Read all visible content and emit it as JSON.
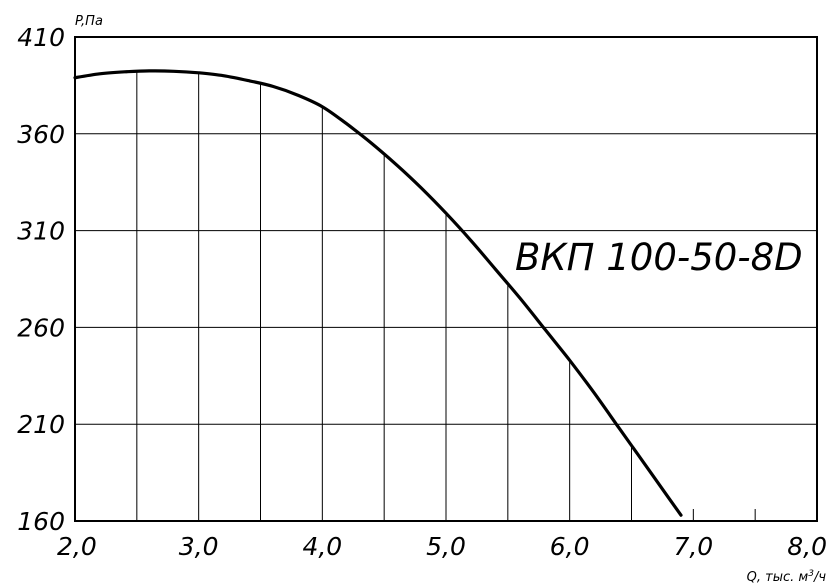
{
  "chart_data": {
    "type": "line",
    "title": "",
    "annotation": "ВКП 100-50-8D",
    "ylabel": "P,Па",
    "xlabel_main": "Q, тыс. м",
    "xlabel_sup": "3",
    "xlabel_end": "/ч",
    "xlim": [
      2.0,
      8.0
    ],
    "ylim": [
      160,
      410
    ],
    "grid": true,
    "xticks": [
      2.0,
      3.0,
      4.0,
      5.0,
      6.0,
      7.0,
      8.0
    ],
    "xtick_labels": [
      "2,0",
      "3,0",
      "4,0",
      "5,0",
      "6,0",
      "7,0",
      "8,0"
    ],
    "yticks": [
      160,
      210,
      260,
      310,
      360,
      410
    ],
    "ytick_labels": [
      "160",
      "210",
      "260",
      "310",
      "360",
      "410"
    ],
    "grid_x": [
      2.5,
      3.0,
      3.5,
      4.0,
      4.5,
      5.0,
      5.5,
      6.0,
      6.5
    ],
    "grid_y": [
      210,
      260,
      310,
      360
    ],
    "series": [
      {
        "x": [
          2.0,
          2.2,
          2.4,
          2.6,
          2.8,
          3.0,
          3.2,
          3.4,
          3.6,
          3.8,
          4.0,
          4.2,
          4.4,
          4.6,
          4.8,
          5.0,
          5.2,
          5.4,
          5.6,
          5.8,
          6.0,
          6.2,
          6.4,
          6.6,
          6.8,
          6.9
        ],
        "y": [
          389,
          391,
          392,
          392.5,
          392.3,
          391.5,
          390,
          387.5,
          384.5,
          380,
          374,
          365,
          355,
          344,
          332,
          319,
          305,
          290,
          275,
          259,
          243,
          226,
          208,
          190,
          172,
          163
        ]
      }
    ]
  },
  "colors": {
    "line": "#000000",
    "grid": "#000000",
    "background": "#ffffff"
  }
}
